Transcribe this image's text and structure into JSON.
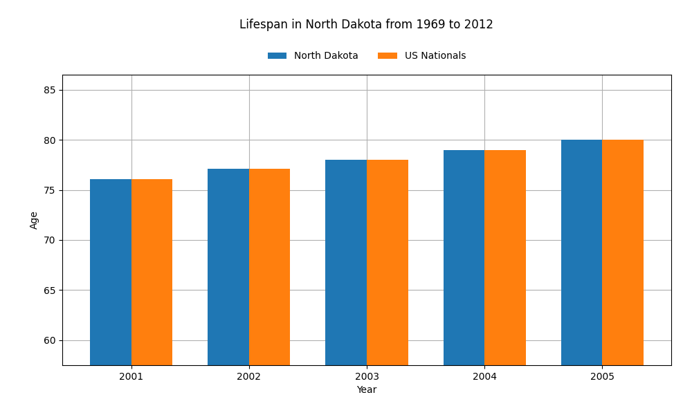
{
  "chart_data": {
    "type": "bar",
    "title": "Lifespan in North Dakota from 1969 to 2012",
    "x_label": "Year",
    "y_label": "Age",
    "categories": [
      "2001",
      "2002",
      "2003",
      "2004",
      "2005"
    ],
    "series": [
      {
        "name": "North Dakota",
        "values": [
          76.1,
          77.1,
          78.0,
          79.0,
          80.0
        ]
      },
      {
        "name": "US Nationals",
        "values": [
          76.1,
          77.1,
          78.0,
          79.0,
          80.0
        ]
      }
    ],
    "ylim": [
      57.5,
      86.5
    ],
    "yticks": [
      60,
      65,
      70,
      75,
      80,
      85
    ],
    "grid": true,
    "legend": "upper center"
  }
}
